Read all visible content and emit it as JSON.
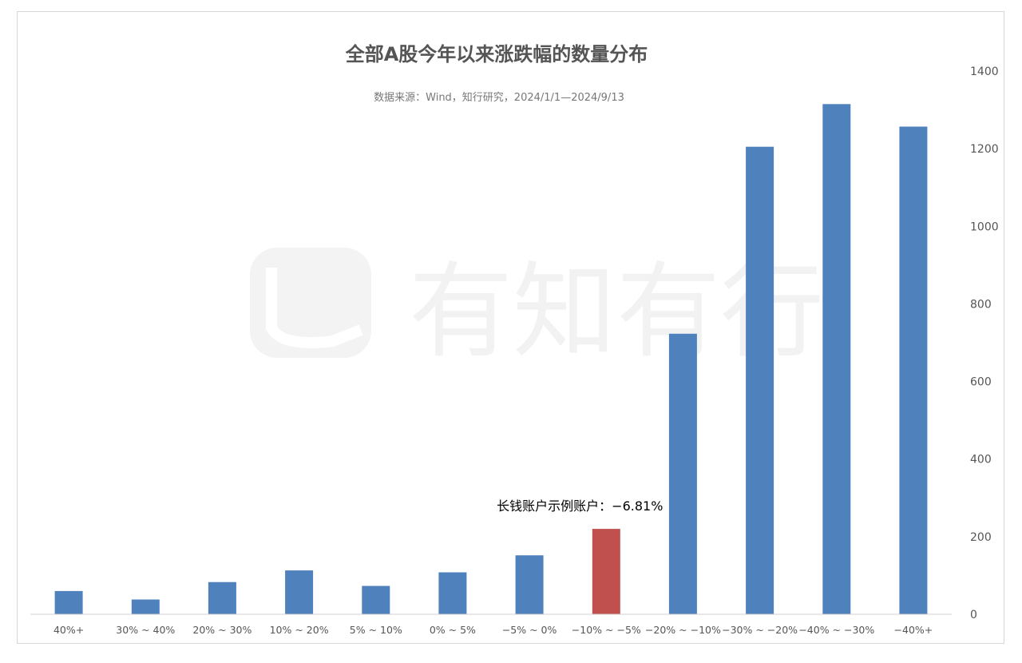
{
  "chart_data": {
    "type": "bar",
    "title": "全部A股今年以来涨跌幅的数量分布",
    "subtitle": "数据来源：Wind，知行研究，2024/1/1—2024/9/13",
    "categories": [
      "40%+",
      "30% ~ 40%",
      "20% ~ 30%",
      "10% ~ 20%",
      "5% ~ 10%",
      "0% ~ 5%",
      "−5% ~ 0%",
      "−10% ~ −5%",
      "−20% ~ −10%",
      "−30% ~ −20%",
      "−40% ~ −30%",
      "−40%+"
    ],
    "values": [
      60,
      38,
      83,
      113,
      73,
      108,
      152,
      220,
      723,
      1205,
      1315,
      1257
    ],
    "highlight_index": 7,
    "bar_color": "#4f81bd",
    "highlight_color": "#c0504d",
    "ylim": [
      0,
      1400
    ],
    "yticks": [
      0,
      200,
      400,
      600,
      800,
      1000,
      1200,
      1400
    ],
    "y_axis_position": "right",
    "grid": false,
    "annotation": "长钱账户示例账户：−6.81%",
    "watermark": "有知有行"
  }
}
